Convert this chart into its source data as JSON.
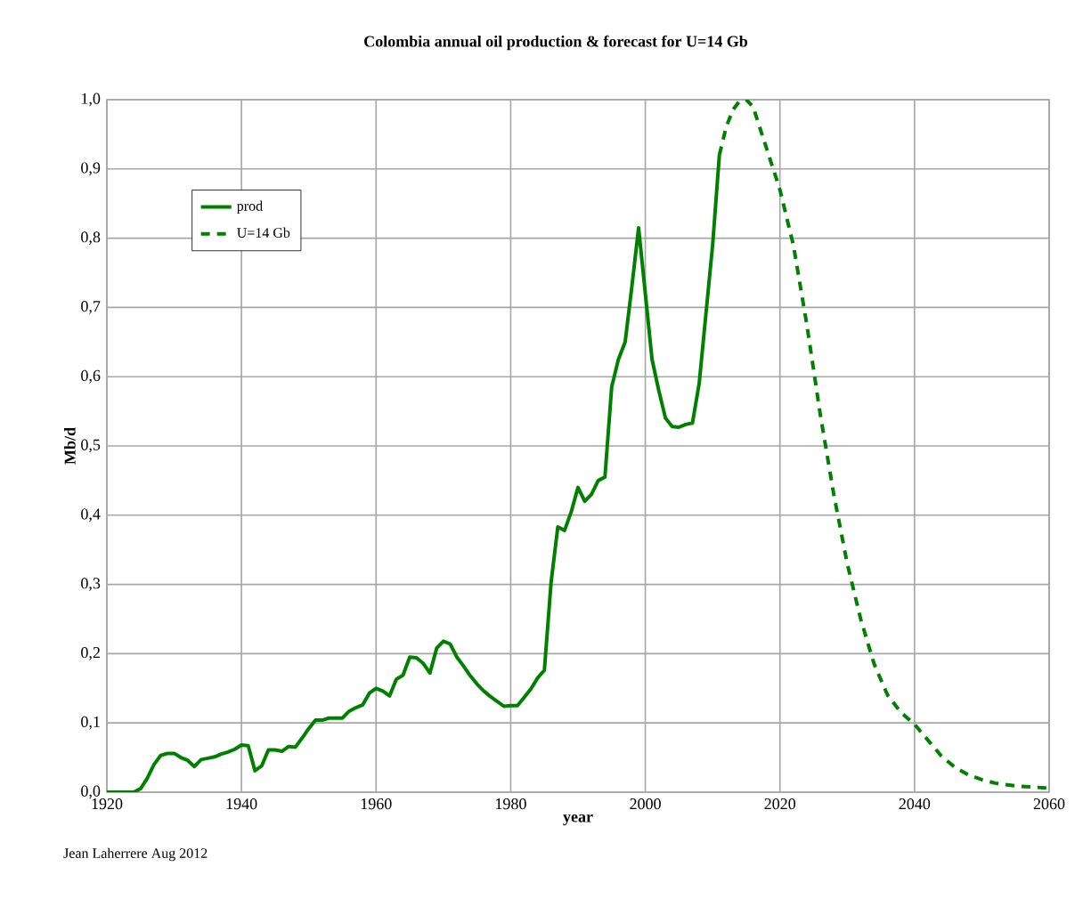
{
  "chart_data": {
    "type": "line",
    "title": "Colombia annual oil production & forecast for U=14 Gb",
    "xlabel": "year",
    "ylabel": "Mb/d",
    "annotations": [
      "Jean Laherrere Aug 2012"
    ],
    "xlim": [
      1920,
      2060
    ],
    "xticks": [
      1920,
      1940,
      1960,
      1980,
      2000,
      2020,
      2040,
      2060
    ],
    "ylim": [
      0,
      1
    ],
    "yticks": [
      {
        "value": 0,
        "label": "0,0"
      },
      {
        "value": 0.1,
        "label": "0,1"
      },
      {
        "value": 0.2,
        "label": "0,2"
      },
      {
        "value": 0.3,
        "label": "0,3"
      },
      {
        "value": 0.4,
        "label": "0,4"
      },
      {
        "value": 0.5,
        "label": "0,5"
      },
      {
        "value": 0.6,
        "label": "0,6"
      },
      {
        "value": 0.7,
        "label": "0,7"
      },
      {
        "value": 0.8,
        "label": "0,8"
      },
      {
        "value": 0.9,
        "label": "0,9"
      },
      {
        "value": 1,
        "label": "1,0"
      }
    ],
    "grid": true,
    "legend": "top left",
    "marker": "none",
    "series": [
      {
        "name": "prod",
        "color": "#008000",
        "line_style": "solid",
        "x": [
          1920,
          1921,
          1922,
          1923,
          1924,
          1925,
          1926,
          1927,
          1928,
          1929,
          1930,
          1931,
          1932,
          1933,
          1934,
          1935,
          1936,
          1937,
          1938,
          1939,
          1940,
          1941,
          1942,
          1943,
          1944,
          1945,
          1946,
          1947,
          1948,
          1949,
          1950,
          1951,
          1952,
          1953,
          1954,
          1955,
          1956,
          1957,
          1958,
          1959,
          1960,
          1961,
          1962,
          1963,
          1964,
          1965,
          1966,
          1967,
          1968,
          1969,
          1970,
          1971,
          1972,
          1973,
          1974,
          1975,
          1976,
          1977,
          1978,
          1979,
          1980,
          1981,
          1982,
          1983,
          1984,
          1985,
          1986,
          1987,
          1988,
          1989,
          1990,
          1991,
          1992,
          1993,
          1994,
          1995,
          1996,
          1997,
          1998,
          1999,
          2000,
          2001,
          2002,
          2003,
          2004,
          2005,
          2006,
          2007,
          2008,
          2009,
          2010,
          2011
        ],
        "values": [
          0,
          0,
          0,
          0,
          0,
          0.005,
          0.02,
          0.04,
          0.053,
          0.056,
          0.056,
          0.05,
          0.046,
          0.037,
          0.047,
          0.049,
          0.051,
          0.055,
          0.058,
          0.062,
          0.068,
          0.067,
          0.031,
          0.038,
          0.061,
          0.061,
          0.059,
          0.066,
          0.065,
          0.078,
          0.092,
          0.104,
          0.104,
          0.107,
          0.107,
          0.107,
          0.117,
          0.122,
          0.126,
          0.143,
          0.15,
          0.146,
          0.139,
          0.163,
          0.169,
          0.195,
          0.194,
          0.186,
          0.172,
          0.208,
          0.218,
          0.214,
          0.195,
          0.182,
          0.168,
          0.156,
          0.146,
          0.138,
          0.131,
          0.124,
          0.125,
          0.125,
          0.137,
          0.149,
          0.165,
          0.176,
          0.303,
          0.383,
          0.378,
          0.405,
          0.44,
          0.42,
          0.43,
          0.45,
          0.455,
          0.585,
          0.625,
          0.65,
          0.73,
          0.815,
          0.72,
          0.625,
          0.58,
          0.54,
          0.528,
          0.527,
          0.531,
          0.533,
          0.59,
          0.69,
          0.79,
          0.92
        ]
      },
      {
        "name": "U=14 Gb",
        "color": "#008000",
        "line_style": "dashed",
        "x": [
          2011,
          2012,
          2013,
          2014,
          2015,
          2016,
          2017,
          2018,
          2019,
          2020,
          2022,
          2024,
          2026,
          2028,
          2030,
          2032,
          2034,
          2036,
          2038,
          2040,
          2042,
          2044,
          2046,
          2048,
          2050,
          2052,
          2055,
          2058,
          2060
        ],
        "values": [
          0.92,
          0.96,
          0.985,
          0.998,
          1.0,
          0.99,
          0.96,
          0.93,
          0.9,
          0.87,
          0.79,
          0.675,
          0.545,
          0.43,
          0.33,
          0.25,
          0.185,
          0.14,
          0.115,
          0.098,
          0.075,
          0.052,
          0.036,
          0.025,
          0.018,
          0.013,
          0.009,
          0.007,
          0.006
        ]
      }
    ]
  }
}
